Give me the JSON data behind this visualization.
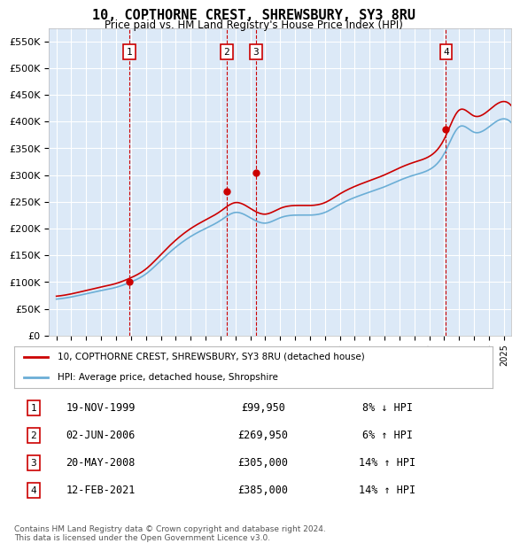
{
  "title": "10, COPTHORNE CREST, SHREWSBURY, SY3 8RU",
  "subtitle": "Price paid vs. HM Land Registry's House Price Index (HPI)",
  "background_color": "#dce9f7",
  "plot_bg_color": "#dce9f7",
  "grid_color": "#ffffff",
  "ylabel": "",
  "xlabel": "",
  "ylim": [
    0,
    575000
  ],
  "yticks": [
    0,
    50000,
    100000,
    150000,
    200000,
    250000,
    300000,
    350000,
    400000,
    450000,
    500000,
    550000
  ],
  "ytick_labels": [
    "£0",
    "£50K",
    "£100K",
    "£150K",
    "£200K",
    "£250K",
    "£300K",
    "£350K",
    "£400K",
    "£450K",
    "£500K",
    "£550K"
  ],
  "hpi_color": "#6baed6",
  "price_color": "#cc0000",
  "sale_marker_color": "#cc0000",
  "vline_color": "#cc0000",
  "sales": [
    {
      "label": "1",
      "date_num": 1999.88,
      "price": 99950
    },
    {
      "label": "2",
      "date_num": 2006.42,
      "price": 269950
    },
    {
      "label": "3",
      "date_num": 2008.38,
      "price": 305000
    },
    {
      "label": "4",
      "date_num": 2021.12,
      "price": 385000
    }
  ],
  "legend_entries": [
    "10, COPTHORNE CREST, SHREWSBURY, SY3 8RU (detached house)",
    "HPI: Average price, detached house, Shropshire"
  ],
  "table_entries": [
    {
      "num": "1",
      "date": "19-NOV-1999",
      "price": "£99,950",
      "hpi": "8% ↓ HPI"
    },
    {
      "num": "2",
      "date": "02-JUN-2006",
      "price": "£269,950",
      "hpi": "6% ↑ HPI"
    },
    {
      "num": "3",
      "date": "20-MAY-2008",
      "price": "£305,000",
      "hpi": "14% ↑ HPI"
    },
    {
      "num": "4",
      "date": "12-FEB-2021",
      "price": "£385,000",
      "hpi": "14% ↑ HPI"
    }
  ],
  "footnote": "Contains HM Land Registry data © Crown copyright and database right 2024.\nThis data is licensed under the Open Government Licence v3.0.",
  "xmin": 1994.5,
  "xmax": 2025.5
}
